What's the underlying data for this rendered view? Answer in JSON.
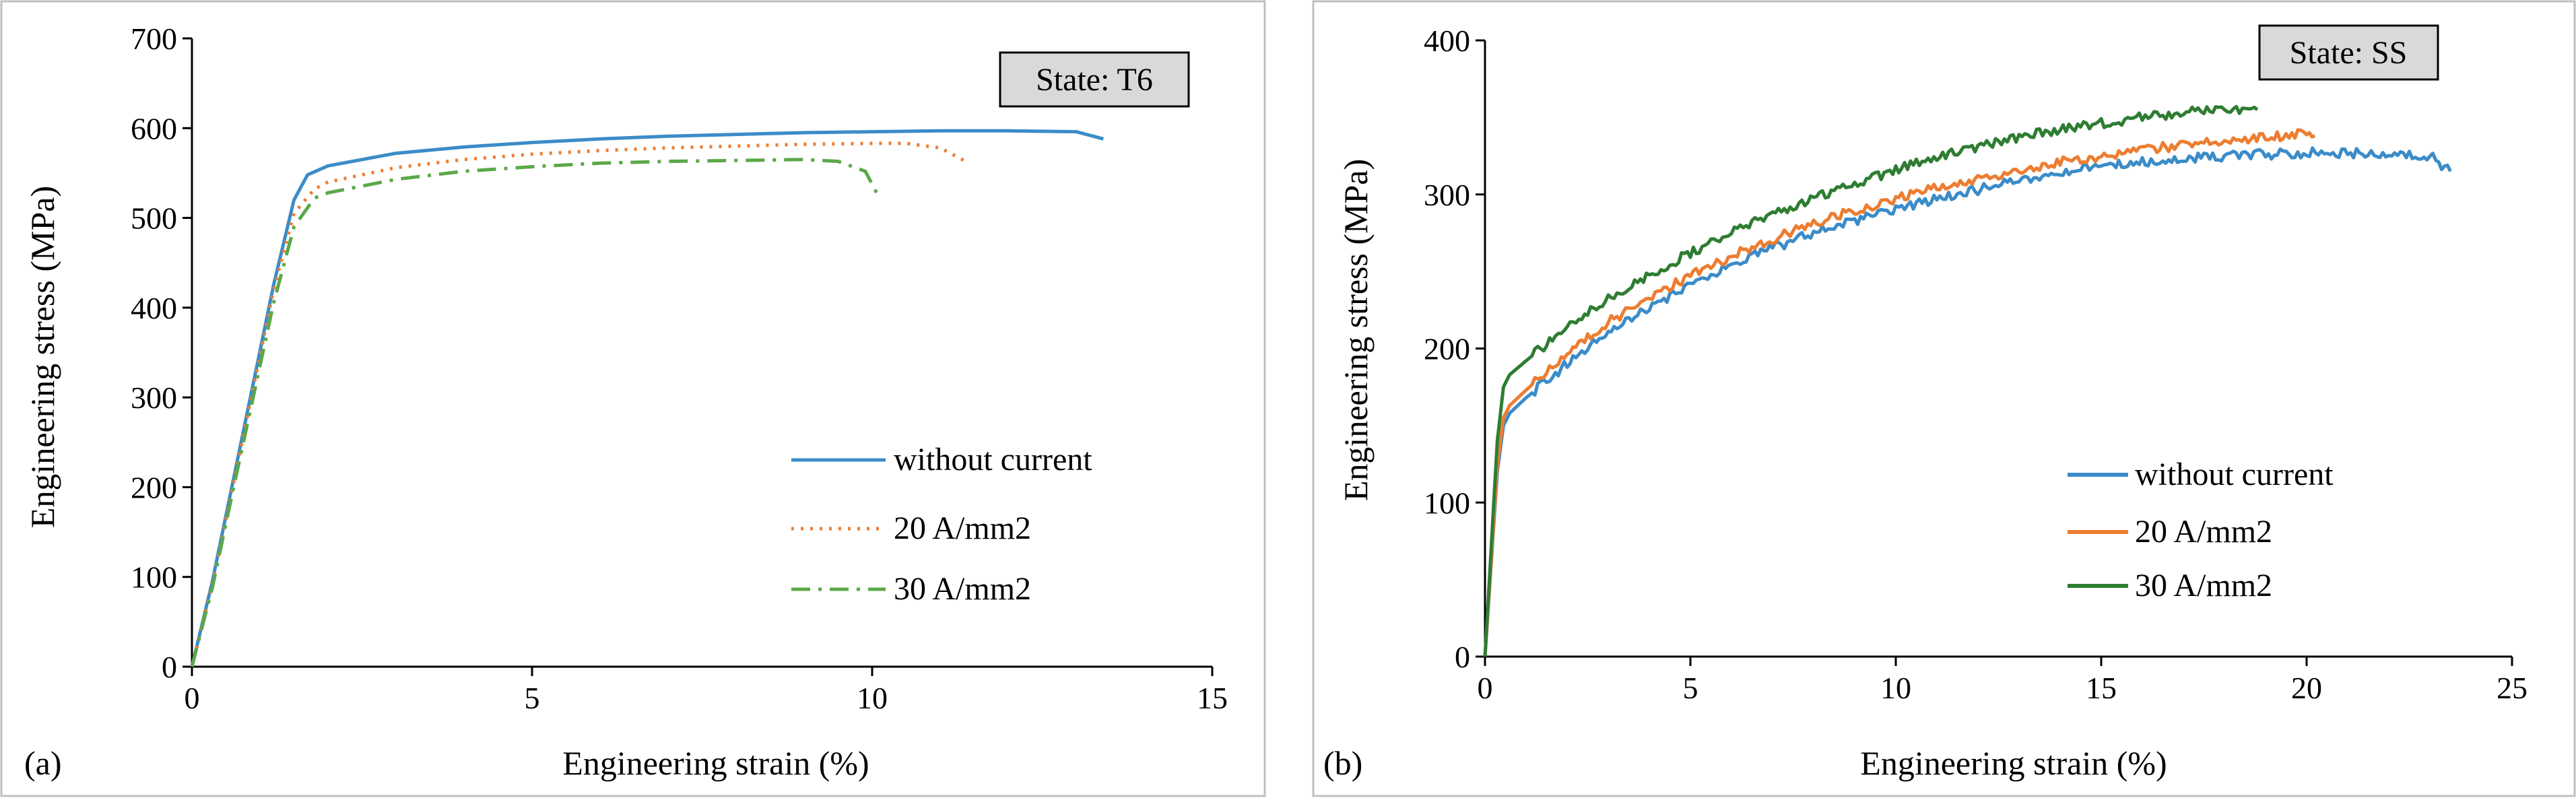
{
  "chart_data": [
    {
      "type": "line",
      "panel_label": "(a)",
      "state_label": "State: T6",
      "xlabel": "Engineering strain (%)",
      "ylabel": "Engineering stress (MPa)",
      "xlim": [
        0,
        15
      ],
      "ylim": [
        0,
        700
      ],
      "xticks": [
        "0",
        "5",
        "10",
        "15"
      ],
      "yticks": [
        "0",
        "100",
        "200",
        "300",
        "400",
        "500",
        "600",
        "700"
      ],
      "grid": false,
      "legend_position": "lower-right",
      "series": [
        {
          "name": "without current",
          "color": "#3B8CC8",
          "dash": "solid",
          "x": [
            0,
            0.3,
            0.6,
            0.9,
            1.2,
            1.5,
            1.7,
            2.0,
            3.0,
            4.0,
            5.0,
            6.0,
            7.0,
            8.0,
            9.0,
            10.0,
            11.0,
            12.0,
            13.0,
            13.4
          ],
          "y": [
            0,
            95,
            205,
            315,
            425,
            520,
            548,
            558,
            572,
            579,
            584,
            588,
            591,
            593,
            595,
            596,
            597,
            597,
            596,
            588
          ]
        },
        {
          "name": "20 A/mm2",
          "color": "#ED7D31",
          "dash": "dotted",
          "x": [
            0,
            0.3,
            0.6,
            0.9,
            1.2,
            1.5,
            1.8,
            2.0,
            3.0,
            4.0,
            5.0,
            6.0,
            7.0,
            8.0,
            9.0,
            10.0,
            10.5,
            11.0,
            11.4
          ],
          "y": [
            0,
            92,
            200,
            310,
            420,
            505,
            532,
            540,
            556,
            565,
            571,
            575,
            578,
            580,
            582,
            583,
            583,
            578,
            562
          ]
        },
        {
          "name": "30 A/mm2",
          "color": "#5BA848",
          "dash": "dashdot",
          "x": [
            0,
            0.3,
            0.6,
            0.9,
            1.2,
            1.5,
            1.8,
            2.0,
            3.0,
            4.0,
            5.0,
            6.0,
            7.0,
            8.0,
            9.0,
            9.5,
            9.9,
            10.1
          ],
          "y": [
            0,
            88,
            195,
            300,
            405,
            490,
            522,
            528,
            543,
            552,
            557,
            561,
            563,
            564,
            565,
            563,
            552,
            523
          ]
        }
      ]
    },
    {
      "type": "line",
      "panel_label": "(b)",
      "state_label": "State: SS",
      "xlabel": "Engineering strain (%)",
      "ylabel": "Engineering stress (MPa)",
      "xlim": [
        0,
        25
      ],
      "ylim": [
        0,
        400
      ],
      "xticks": [
        "0",
        "5",
        "10",
        "15",
        "20",
        "25"
      ],
      "yticks": [
        "0",
        "100",
        "200",
        "300",
        "400"
      ],
      "grid": false,
      "legend_position": "lower-right",
      "series": [
        {
          "name": "without current",
          "color": "#3B8CC8",
          "dash": "solid",
          "x": [
            0,
            0.15,
            0.3,
            0.45,
            0.6,
            1.0,
            2,
            3,
            4,
            5,
            6,
            7,
            8,
            9,
            10,
            11,
            12,
            13,
            14,
            15,
            16,
            17,
            18,
            19,
            20,
            21,
            22,
            23,
            23.5
          ],
          "y": [
            0,
            60,
            120,
            150,
            158,
            168,
            190,
            210,
            227,
            241,
            254,
            265,
            275,
            283,
            290,
            297,
            303,
            309,
            314,
            318,
            321,
            323,
            325,
            326,
            327,
            327,
            326,
            325,
            315
          ]
        },
        {
          "name": "20 A/mm2",
          "color": "#ED7D31",
          "dash": "solid",
          "x": [
            0,
            0.15,
            0.3,
            0.45,
            0.6,
            1.0,
            2,
            3,
            4,
            5,
            6,
            7,
            8,
            9,
            10,
            11,
            12,
            13,
            14,
            15,
            16,
            17,
            18,
            19,
            20,
            20.2
          ],
          "y": [
            0,
            62,
            125,
            155,
            163,
            173,
            197,
            217,
            233,
            247,
            260,
            271,
            281,
            290,
            297,
            304,
            310,
            316,
            321,
            325,
            329,
            332,
            335,
            337,
            340,
            338
          ]
        },
        {
          "name": "30 A/mm2",
          "color": "#2E7D32",
          "dash": "solid",
          "x": [
            0,
            0.15,
            0.3,
            0.45,
            0.6,
            1.0,
            2,
            3,
            4,
            5,
            6,
            7,
            8,
            9,
            10,
            11,
            12,
            13,
            14,
            15,
            16,
            17,
            18,
            18.8
          ],
          "y": [
            0,
            70,
            140,
            175,
            183,
            192,
            214,
            232,
            248,
            262,
            275,
            287,
            298,
            307,
            316,
            324,
            331,
            337,
            342,
            346,
            350,
            353,
            356,
            355
          ]
        }
      ]
    }
  ]
}
